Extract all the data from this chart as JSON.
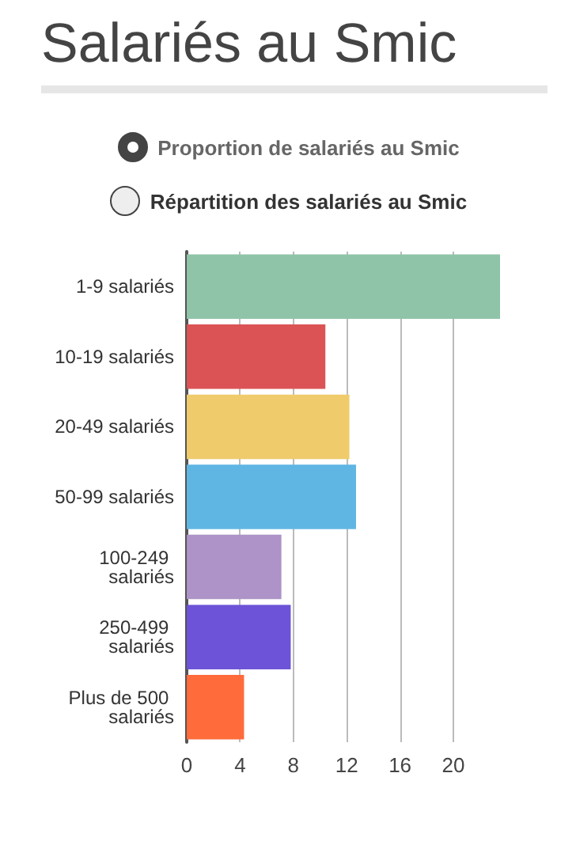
{
  "chart_data": {
    "type": "bar",
    "orientation": "horizontal",
    "title": "Salariés au Smic",
    "annotations": [
      "Proportion de salariés au Smic",
      "Répartition des salariés au Smic"
    ],
    "categories": [
      "1-9 salariés",
      "10-19 salariés",
      "20-49 salariés",
      "50-99 salariés",
      "100-249 salariés",
      "250-499 salariés",
      "Plus de 500 salariés"
    ],
    "values": [
      23.5,
      10.4,
      12.2,
      12.7,
      7.1,
      7.8,
      4.3
    ],
    "colors": [
      "#8fc4a8",
      "#dc5356",
      "#efcb6b",
      "#5fb6e3",
      "#ad93c7",
      "#6d53d8",
      "#ff6b3a"
    ],
    "xlim": [
      0,
      23.5
    ],
    "xticks": [
      0,
      4,
      8,
      12,
      16,
      20
    ],
    "grid": "x"
  }
}
